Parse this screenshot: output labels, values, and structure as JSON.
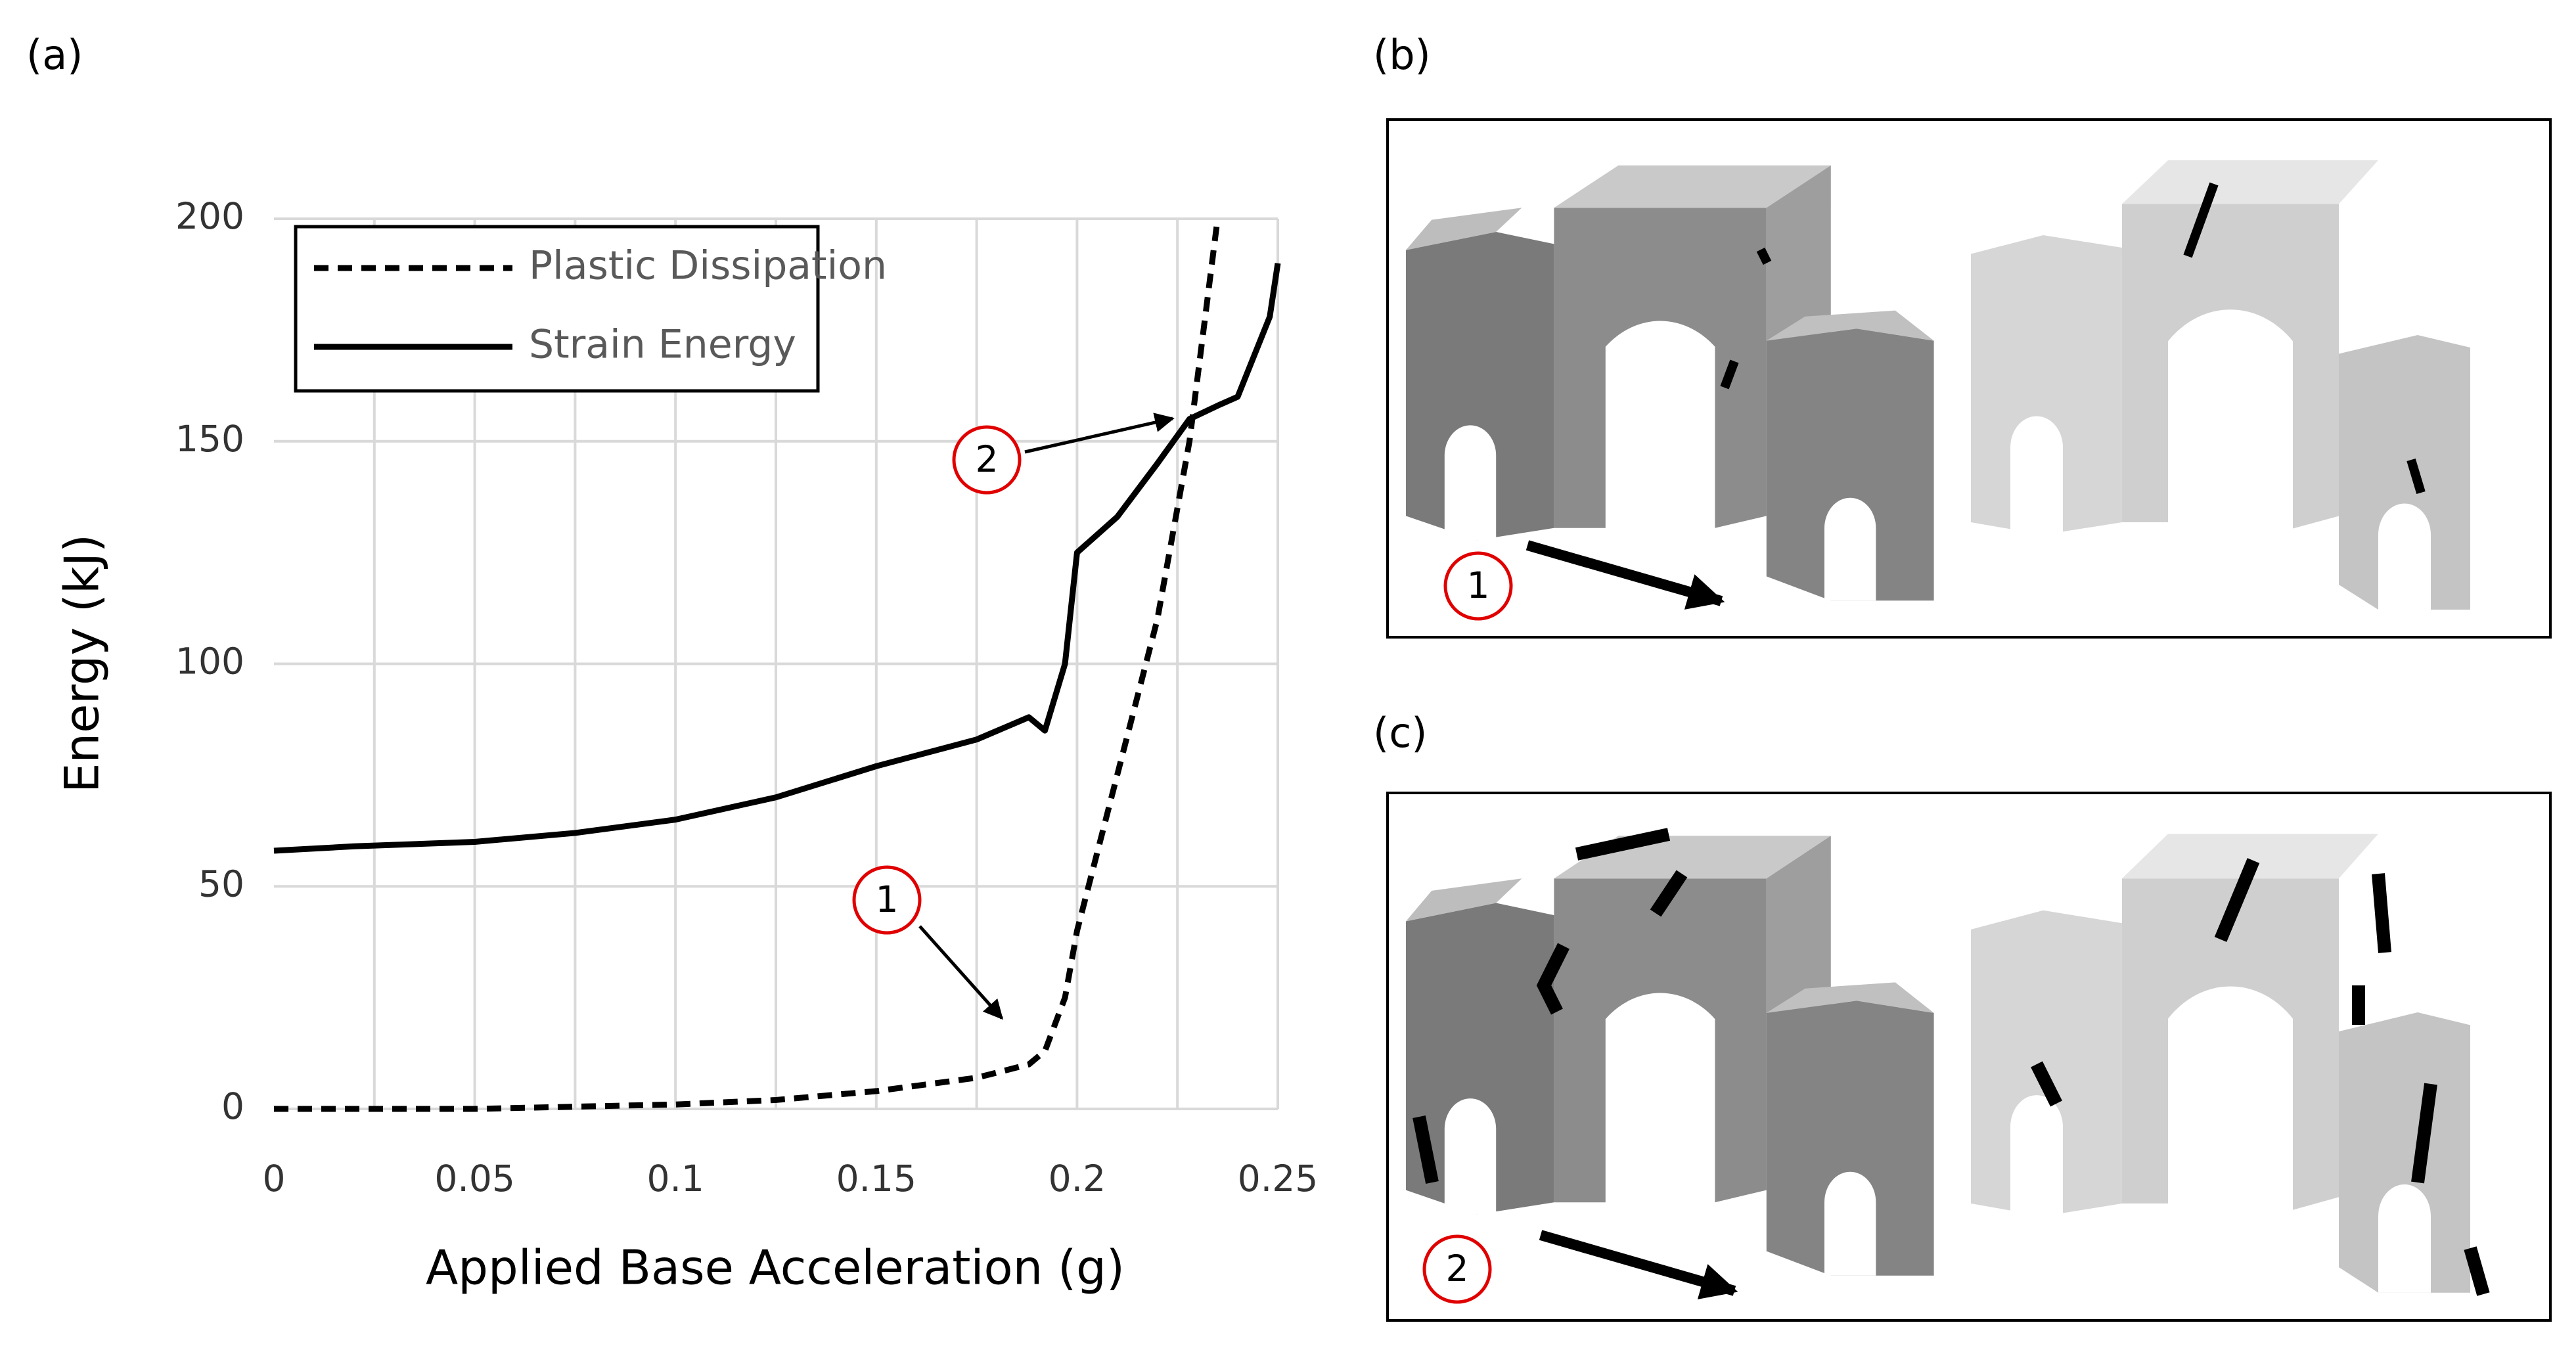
{
  "chart_data": {
    "type": "line",
    "panel_label": "(a)",
    "xlabel": "Applied Base Acceleration (g)",
    "ylabel": "Energy (kJ)",
    "x": [
      0,
      0.02,
      0.05,
      0.075,
      0.1,
      0.125,
      0.15,
      0.175,
      0.188,
      0.192,
      0.197,
      0.2,
      0.21,
      0.22,
      0.228,
      0.235,
      0.24,
      0.248,
      0.25
    ],
    "series": [
      {
        "name": "Plastic Dissipation",
        "color": "#000000",
        "dashed": true,
        "values": [
          0,
          0,
          0,
          0.5,
          1,
          2,
          4,
          7,
          10,
          13,
          25,
          40,
          75,
          110,
          150,
          200,
          null,
          null,
          null
        ]
      },
      {
        "name": "Strain Energy",
        "color": "#000000",
        "dashed": false,
        "values": [
          58,
          59,
          60,
          62,
          65,
          70,
          77,
          83,
          88,
          85,
          100,
          125,
          133,
          145,
          155,
          158,
          160,
          178,
          190
        ]
      }
    ],
    "xlim": [
      0,
      0.25
    ],
    "ylim": [
      0,
      200
    ],
    "xticks": [
      0,
      0.05,
      0.1,
      0.15,
      0.2,
      0.25
    ],
    "yticks": [
      0,
      50,
      100,
      150,
      200
    ],
    "xgrid": [
      0.025,
      0.05,
      0.075,
      0.1,
      0.125,
      0.15,
      0.175,
      0.2,
      0.225,
      0.25
    ],
    "grid": true,
    "legend": "upper left",
    "annotations": [
      {
        "text": "1"
      },
      {
        "text": "2"
      }
    ]
  },
  "panels": [
    {
      "label": "(b)",
      "marker": "1"
    },
    {
      "label": "(c)",
      "marker": "2"
    }
  ]
}
